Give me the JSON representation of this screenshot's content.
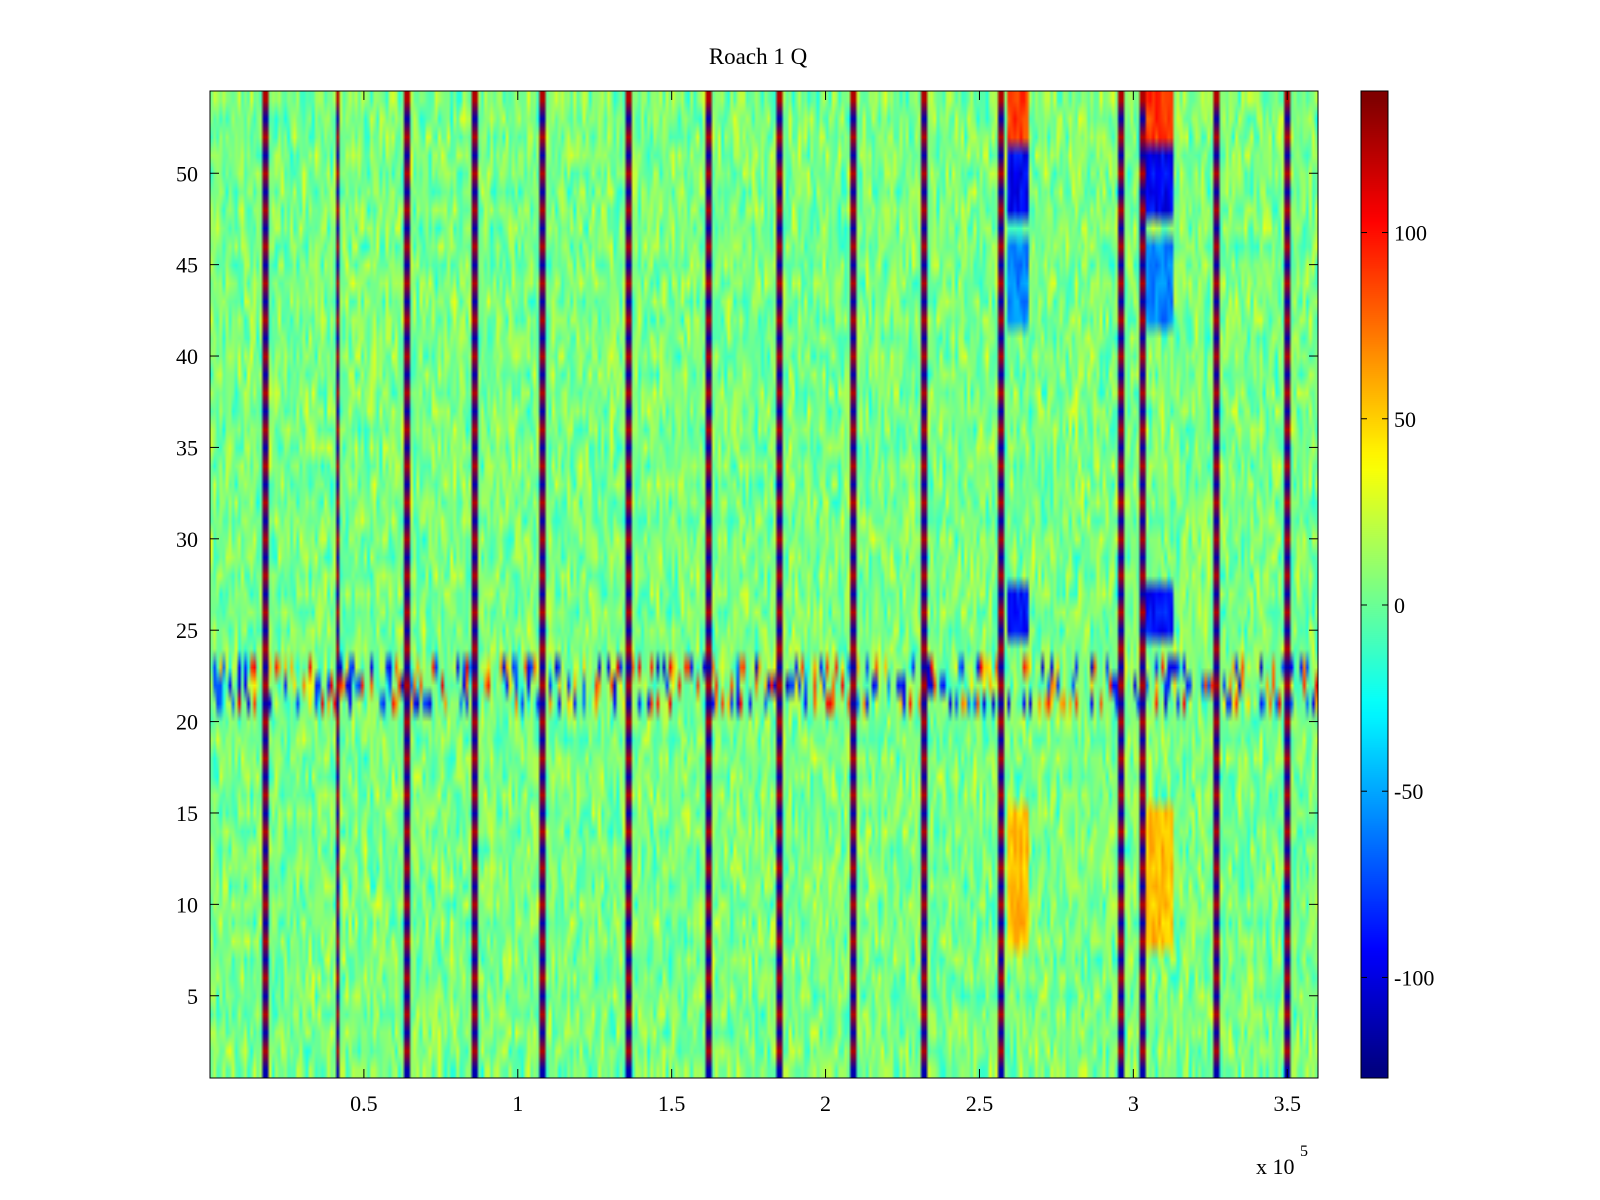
{
  "chart_data": {
    "type": "heatmap",
    "title": "Roach 1 Q",
    "xlabel": "",
    "ylabel": "",
    "x_exponent_label": "x 10",
    "x_exponent_power": "5",
    "xlim": [
      0,
      3.6
    ],
    "ylim": [
      0.5,
      54.5
    ],
    "x_ticks": [
      0.5,
      1,
      1.5,
      2,
      2.5,
      3,
      3.5
    ],
    "x_tick_labels": [
      "0.5",
      "1",
      "1.5",
      "2",
      "2.5",
      "3",
      "3.5"
    ],
    "y_ticks": [
      5,
      10,
      15,
      20,
      25,
      30,
      35,
      40,
      45,
      50
    ],
    "y_tick_labels": [
      "5",
      "10",
      "15",
      "20",
      "25",
      "30",
      "35",
      "40",
      "45",
      "50"
    ],
    "rows": 54,
    "columns": 360,
    "colormap": "jet",
    "colorbar": {
      "clim": [
        -127,
        138
      ],
      "ticks": [
        -100,
        -50,
        0,
        50,
        100
      ],
      "tick_labels": [
        "-100",
        "-50",
        "0",
        "50",
        "100"
      ]
    },
    "background_value_range": [
      -30,
      30
    ],
    "vertical_stripes_x": [
      0.18,
      0.415,
      0.64,
      0.86,
      1.08,
      1.36,
      1.62,
      1.85,
      2.09,
      2.32,
      2.57,
      2.96,
      3.03,
      3.27,
      3.5
    ],
    "noisy_row_band_y": [
      21,
      23
    ],
    "features": [
      {
        "x_range": [
          2.59,
          2.66
        ],
        "y_range": [
          52,
          54
        ],
        "value": 90
      },
      {
        "x_range": [
          3.04,
          3.13
        ],
        "y_range": [
          52,
          54
        ],
        "value": 90
      },
      {
        "x_range": [
          2.59,
          2.66
        ],
        "y_range": [
          48,
          51
        ],
        "value": -95
      },
      {
        "x_range": [
          3.04,
          3.13
        ],
        "y_range": [
          48,
          51
        ],
        "value": -95
      },
      {
        "x_range": [
          2.59,
          2.66
        ],
        "y_range": [
          42,
          46
        ],
        "value": -60
      },
      {
        "x_range": [
          3.04,
          3.13
        ],
        "y_range": [
          42,
          46
        ],
        "value": -60
      },
      {
        "x_range": [
          2.59,
          2.66
        ],
        "y_range": [
          25,
          27
        ],
        "value": -90
      },
      {
        "x_range": [
          3.04,
          3.13
        ],
        "y_range": [
          25,
          27
        ],
        "value": -90
      },
      {
        "x_range": [
          2.59,
          2.66
        ],
        "y_range": [
          8,
          15
        ],
        "value": 55
      },
      {
        "x_range": [
          3.04,
          3.13
        ],
        "y_range": [
          8,
          15
        ],
        "value": 55
      }
    ],
    "grid": false
  }
}
